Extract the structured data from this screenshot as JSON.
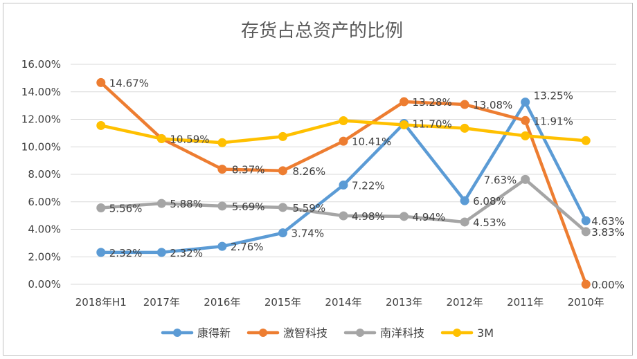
{
  "chart_data": {
    "type": "line",
    "title": "存货占总资产的比例",
    "categories": [
      "2018年H1",
      "2017年",
      "2016年",
      "2015年",
      "2014年",
      "2013年",
      "2012年",
      "2011年",
      "2010年"
    ],
    "ylim": [
      0,
      16
    ],
    "yticks": [
      "0.00%",
      "2.00%",
      "4.00%",
      "6.00%",
      "8.00%",
      "10.00%",
      "12.00%",
      "14.00%",
      "16.00%"
    ],
    "grid": true,
    "legend_position": "bottom",
    "series": [
      {
        "name": "康得新",
        "color": "#5b9bd5",
        "values": [
          2.32,
          2.32,
          2.76,
          3.74,
          7.22,
          11.7,
          6.08,
          13.25,
          4.63
        ],
        "labels": [
          "2.32%",
          "2.32%",
          "2.76%",
          "3.74%",
          "7.22%",
          "11.70%",
          "6.08%",
          "13.25%",
          "4.63%"
        ]
      },
      {
        "name": "激智科技",
        "color": "#ed7d31",
        "values": [
          14.67,
          10.6,
          8.37,
          8.26,
          10.41,
          13.28,
          13.08,
          11.91,
          0.0
        ],
        "labels": [
          "14.67%",
          "",
          "8.37%",
          "8.26%",
          "10.41%",
          "13.28%",
          "13.08%",
          "11.91%",
          "0.00%"
        ]
      },
      {
        "name": "南洋科技",
        "color": "#a5a5a5",
        "values": [
          5.56,
          5.88,
          5.69,
          5.59,
          4.98,
          4.94,
          4.53,
          7.63,
          3.83
        ],
        "labels": [
          "5.56%",
          "5.88%",
          "5.69%",
          "5.59%",
          "4.98%",
          "4.94%",
          "4.53%",
          "7.63%",
          "3.83%"
        ]
      },
      {
        "name": "3M",
        "color": "#ffc000",
        "values": [
          11.55,
          10.59,
          10.3,
          10.75,
          11.9,
          11.6,
          11.35,
          10.8,
          10.45
        ],
        "labels": [
          "",
          "10.59%",
          "",
          "",
          "",
          "",
          "",
          "",
          ""
        ]
      }
    ]
  }
}
